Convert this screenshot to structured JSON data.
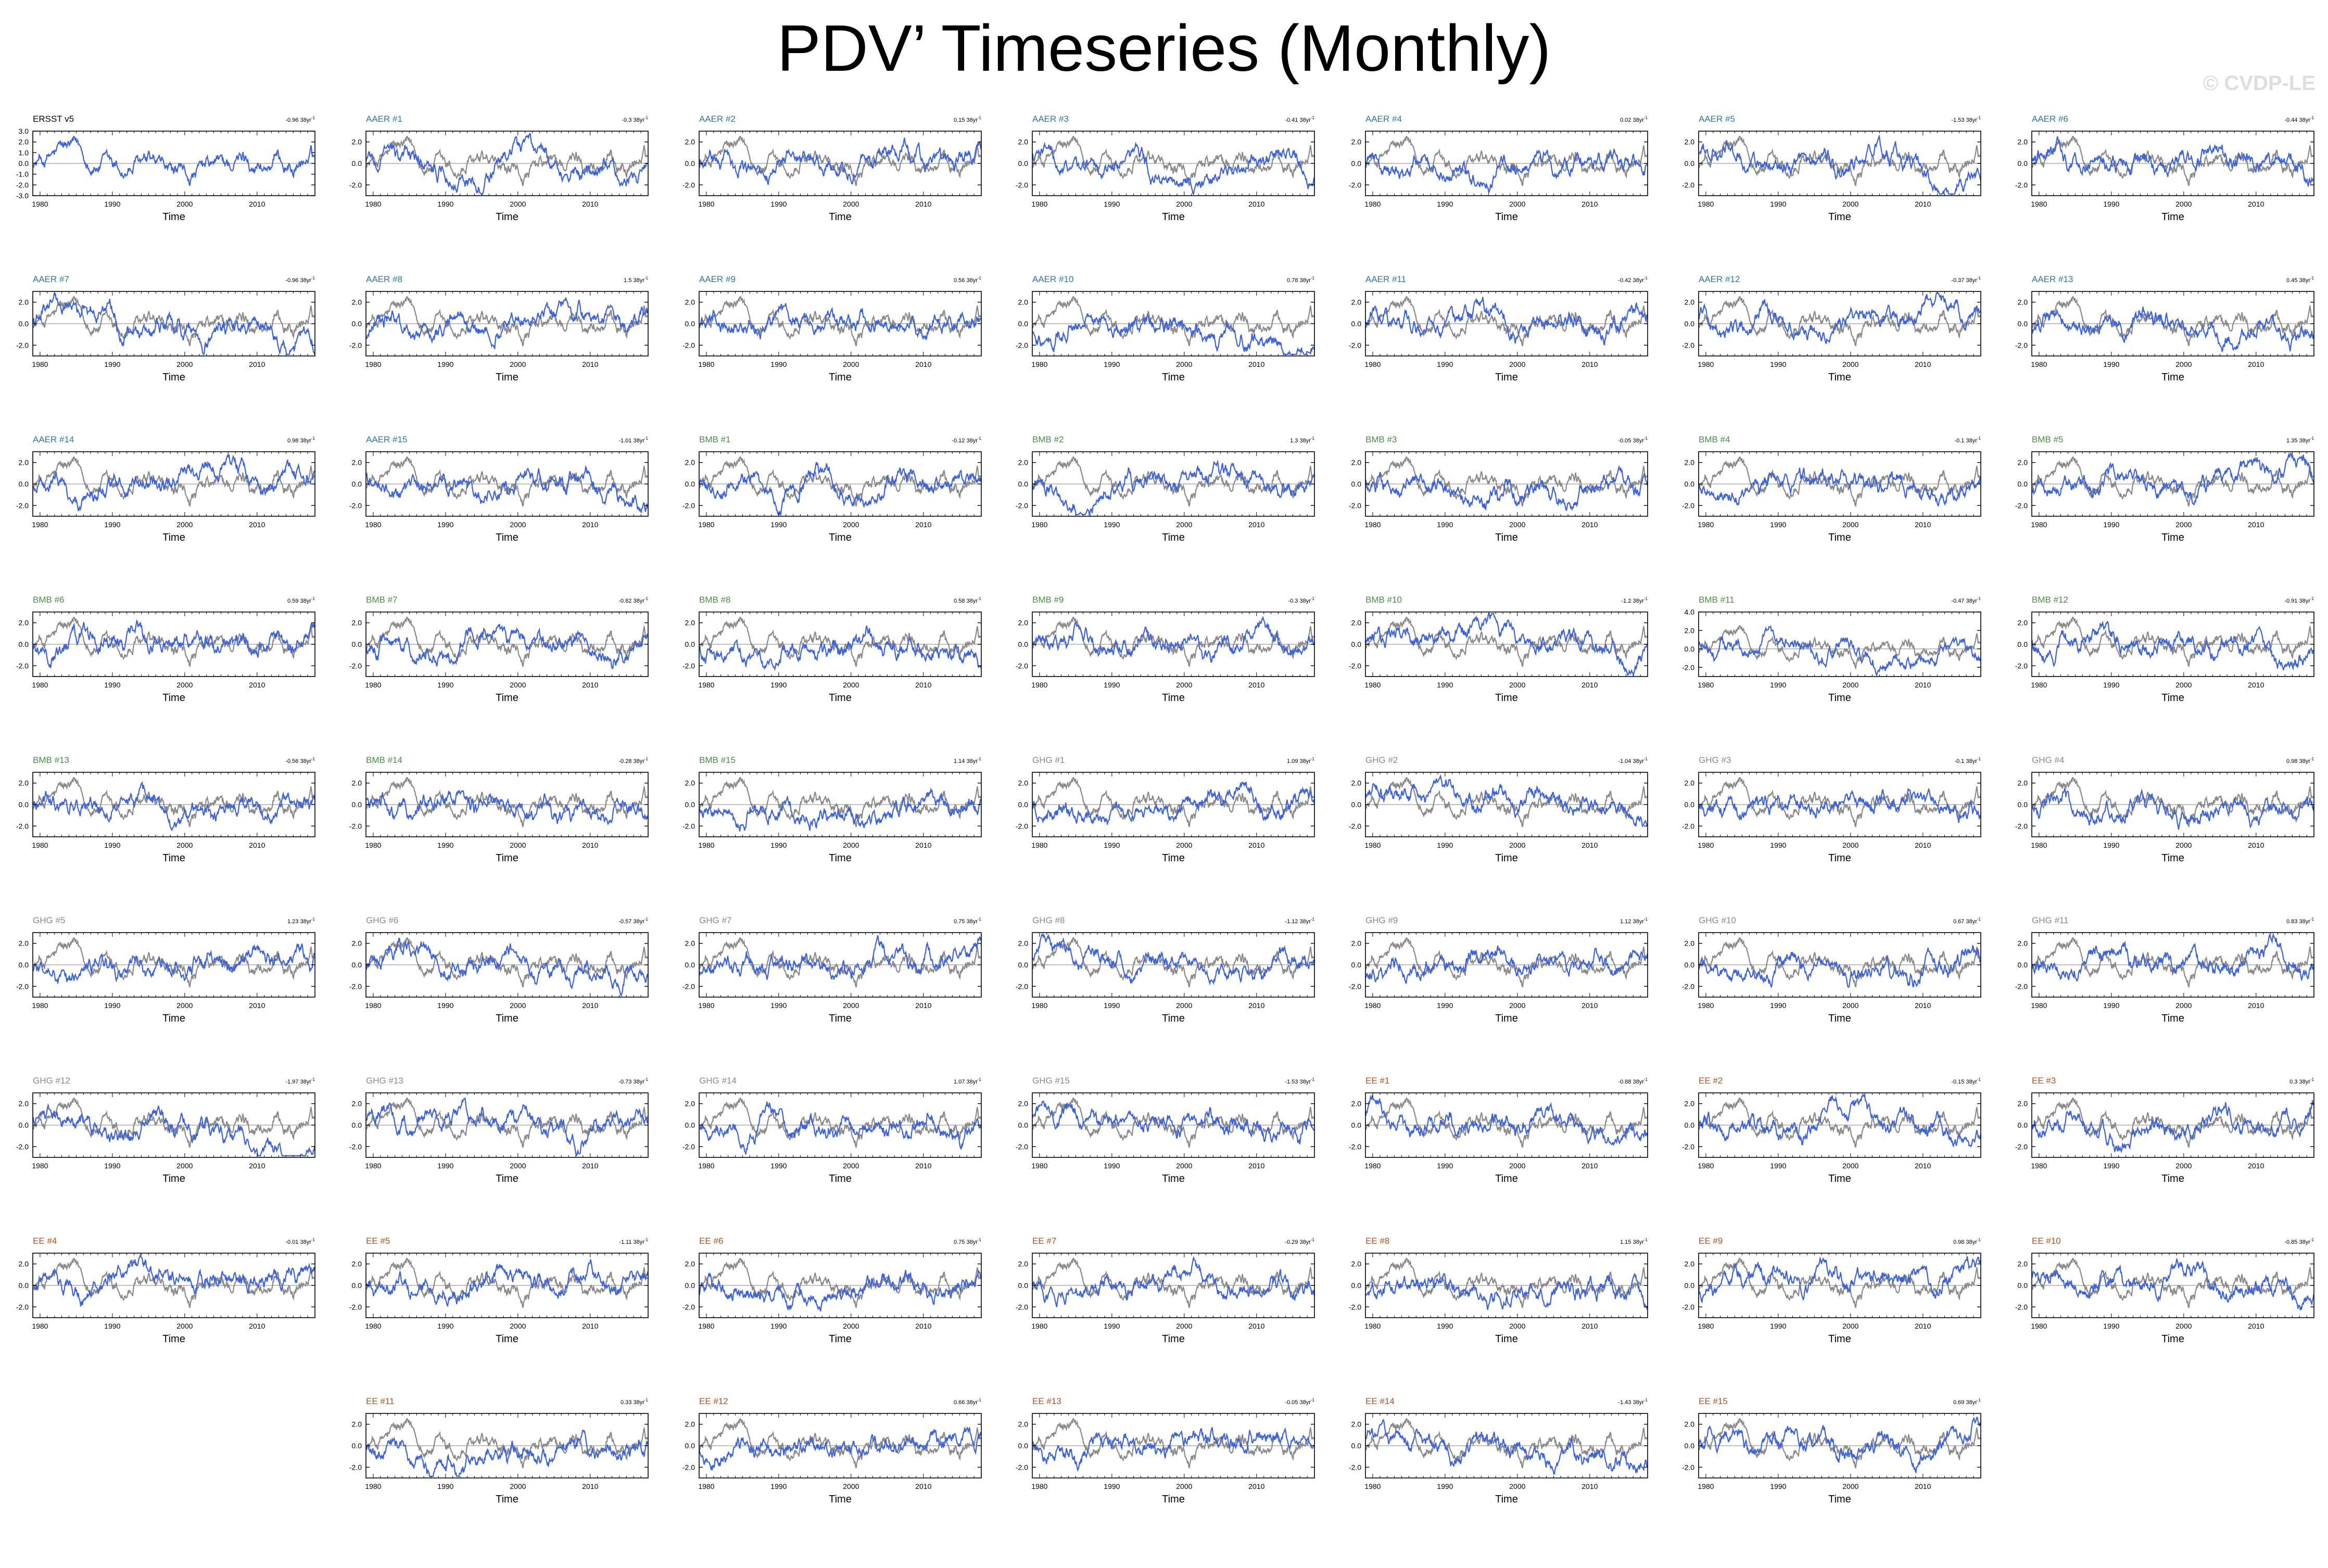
{
  "title": "PDV’ Timeseries (Monthly)",
  "copyright": "© CVDP-LE",
  "colors": {
    "obs_line": "#3b62e0",
    "ensemble_line": "#8a8a8a",
    "zero_line": "#9a9a9a",
    "axis": "#000000",
    "label_obs": "#000000",
    "label_AAER": "#2a7aa6",
    "label_BMB": "#4c8c4a",
    "label_GHG": "#8a8a8a",
    "label_EE": "#b5521d"
  },
  "chart_data": {
    "type": "line",
    "panel_count": 61,
    "x_label": "Time",
    "x_range": [
      1979,
      2018
    ],
    "x_ticks": [
      1980,
      1990,
      2000,
      2010
    ],
    "trend_unit": "38yr",
    "series_note": "Each simulation panel has two lines: the simulation in blue and the ERSST v5 observations in grey; the ERSST v5 panel has only the blue line. All values are monthly PDV’ anomalies.",
    "panels": [
      {
        "name": "ERSST v5",
        "group": "obs",
        "trend": "-0.96",
        "yticks": [
          "3.0",
          "2.0",
          "1.0",
          "0.0",
          "-1.0",
          "-2.0",
          "-3.0"
        ],
        "ylim": [
          -3,
          3
        ]
      },
      {
        "name": "AAER #1",
        "group": "AAER",
        "trend": "-0.3",
        "yticks": [
          "2.0",
          "0.0",
          "-2.0"
        ],
        "ylim": [
          -3,
          3
        ]
      },
      {
        "name": "AAER #2",
        "group": "AAER",
        "trend": "0.15",
        "yticks": [
          "2.0",
          "0.0",
          "-2.0"
        ],
        "ylim": [
          -3,
          3
        ]
      },
      {
        "name": "AAER #3",
        "group": "AAER",
        "trend": "-0.41",
        "yticks": [
          "2.0",
          "0.0",
          "-2.0"
        ],
        "ylim": [
          -3,
          3
        ]
      },
      {
        "name": "AAER #4",
        "group": "AAER",
        "trend": "0.02",
        "yticks": [
          "2.0",
          "0.0",
          "-2.0"
        ],
        "ylim": [
          -3,
          3
        ]
      },
      {
        "name": "AAER #5",
        "group": "AAER",
        "trend": "-1.53",
        "yticks": [
          "2.0",
          "0.0",
          "-2.0"
        ],
        "ylim": [
          -3,
          3
        ]
      },
      {
        "name": "AAER #6",
        "group": "AAER",
        "trend": "-0.44",
        "yticks": [
          "2.0",
          "0.0",
          "-2.0"
        ],
        "ylim": [
          -3,
          3
        ]
      },
      {
        "name": "AAER #7",
        "group": "AAER",
        "trend": "-0.96",
        "yticks": [
          "2.0",
          "0.0",
          "-2.0"
        ],
        "ylim": [
          -3,
          3
        ]
      },
      {
        "name": "AAER #8",
        "group": "AAER",
        "trend": "1.5",
        "yticks": [
          "2.0",
          "0.0",
          "-2.0"
        ],
        "ylim": [
          -3,
          3
        ]
      },
      {
        "name": "AAER #9",
        "group": "AAER",
        "trend": "0.56",
        "yticks": [
          "2.0",
          "0.0",
          "-2.0"
        ],
        "ylim": [
          -3,
          3
        ]
      },
      {
        "name": "AAER #10",
        "group": "AAER",
        "trend": "0.78",
        "yticks": [
          "2.0",
          "0.0",
          "-2.0"
        ],
        "ylim": [
          -3,
          3
        ]
      },
      {
        "name": "AAER #11",
        "group": "AAER",
        "trend": "-0.42",
        "yticks": [
          "2.0",
          "0.0",
          "-2.0"
        ],
        "ylim": [
          -3,
          3
        ]
      },
      {
        "name": "AAER #12",
        "group": "AAER",
        "trend": "-0.37",
        "yticks": [
          "2.0",
          "0.0",
          "-2.0"
        ],
        "ylim": [
          -3,
          3
        ]
      },
      {
        "name": "AAER #13",
        "group": "AAER",
        "trend": "0.45",
        "yticks": [
          "2.0",
          "0.0",
          "-2.0"
        ],
        "ylim": [
          -3,
          3
        ]
      },
      {
        "name": "AAER #14",
        "group": "AAER",
        "trend": "0.98",
        "yticks": [
          "2.0",
          "0.0",
          "-2.0"
        ],
        "ylim": [
          -3,
          3
        ]
      },
      {
        "name": "AAER #15",
        "group": "AAER",
        "trend": "-1.01",
        "yticks": [
          "2.0",
          "0.0",
          "-2.0"
        ],
        "ylim": [
          -3,
          3
        ]
      },
      {
        "name": "BMB #1",
        "group": "BMB",
        "trend": "-0.12",
        "yticks": [
          "2.0",
          "0.0",
          "-2.0"
        ],
        "ylim": [
          -3,
          3
        ]
      },
      {
        "name": "BMB #2",
        "group": "BMB",
        "trend": "1.3",
        "yticks": [
          "2.0",
          "0.0",
          "-2.0"
        ],
        "ylim": [
          -3,
          3
        ]
      },
      {
        "name": "BMB #3",
        "group": "BMB",
        "trend": "-0.05",
        "yticks": [
          "2.0",
          "0.0",
          "-2.0"
        ],
        "ylim": [
          -3,
          3
        ]
      },
      {
        "name": "BMB #4",
        "group": "BMB",
        "trend": "-0.1",
        "yticks": [
          "2.0",
          "0.0",
          "-2.0"
        ],
        "ylim": [
          -3,
          3
        ]
      },
      {
        "name": "BMB #5",
        "group": "BMB",
        "trend": "1.35",
        "yticks": [
          "2.0",
          "0.0",
          "-2.0"
        ],
        "ylim": [
          -3,
          3
        ]
      },
      {
        "name": "BMB #6",
        "group": "BMB",
        "trend": "0.59",
        "yticks": [
          "2.0",
          "0.0",
          "-2.0"
        ],
        "ylim": [
          -3,
          3
        ]
      },
      {
        "name": "BMB #7",
        "group": "BMB",
        "trend": "-0.82",
        "yticks": [
          "2.0",
          "0.0",
          "-2.0"
        ],
        "ylim": [
          -3,
          3
        ]
      },
      {
        "name": "BMB #8",
        "group": "BMB",
        "trend": "0.58",
        "yticks": [
          "2.0",
          "0.0",
          "-2.0"
        ],
        "ylim": [
          -3,
          3
        ]
      },
      {
        "name": "BMB #9",
        "group": "BMB",
        "trend": "-0.3",
        "yticks": [
          "2.0",
          "0.0",
          "-2.0"
        ],
        "ylim": [
          -3,
          3
        ]
      },
      {
        "name": "BMB #10",
        "group": "BMB",
        "trend": "-1.2",
        "yticks": [
          "2.0",
          "0.0",
          "-2.0"
        ],
        "ylim": [
          -3,
          3
        ]
      },
      {
        "name": "BMB #11",
        "group": "BMB",
        "trend": "-0.47",
        "yticks": [
          "4.0",
          "2.0",
          "0.0",
          "-2.0"
        ],
        "ylim": [
          -3,
          4
        ]
      },
      {
        "name": "BMB #12",
        "group": "BMB",
        "trend": "-0.91",
        "yticks": [
          "2.0",
          "0.0",
          "-2.0"
        ],
        "ylim": [
          -3,
          3
        ]
      },
      {
        "name": "BMB #13",
        "group": "BMB",
        "trend": "-0.56",
        "yticks": [
          "2.0",
          "0.0",
          "-2.0"
        ],
        "ylim": [
          -3,
          3
        ]
      },
      {
        "name": "BMB #14",
        "group": "BMB",
        "trend": "-0.28",
        "yticks": [
          "2.0",
          "0.0",
          "-2.0"
        ],
        "ylim": [
          -3,
          3
        ]
      },
      {
        "name": "BMB #15",
        "group": "BMB",
        "trend": "1.14",
        "yticks": [
          "2.0",
          "0.0",
          "-2.0"
        ],
        "ylim": [
          -3,
          3
        ]
      },
      {
        "name": "GHG #1",
        "group": "GHG",
        "trend": "1.09",
        "yticks": [
          "2.0",
          "0.0",
          "-2.0"
        ],
        "ylim": [
          -3,
          3
        ]
      },
      {
        "name": "GHG #2",
        "group": "GHG",
        "trend": "-1.04",
        "yticks": [
          "2.0",
          "0.0",
          "-2.0"
        ],
        "ylim": [
          -3,
          3
        ]
      },
      {
        "name": "GHG #3",
        "group": "GHG",
        "trend": "-0.1",
        "yticks": [
          "2.0",
          "0.0",
          "-2.0"
        ],
        "ylim": [
          -3,
          3
        ]
      },
      {
        "name": "GHG #4",
        "group": "GHG",
        "trend": "0.98",
        "yticks": [
          "2.0",
          "0.0",
          "-2.0"
        ],
        "ylim": [
          -3,
          3
        ]
      },
      {
        "name": "GHG #5",
        "group": "GHG",
        "trend": "1.23",
        "yticks": [
          "2.0",
          "0.0",
          "-2.0"
        ],
        "ylim": [
          -3,
          3
        ]
      },
      {
        "name": "GHG #6",
        "group": "GHG",
        "trend": "-0.57",
        "yticks": [
          "2.0",
          "0.0",
          "-2.0"
        ],
        "ylim": [
          -3,
          3
        ]
      },
      {
        "name": "GHG #7",
        "group": "GHG",
        "trend": "0.75",
        "yticks": [
          "2.0",
          "0.0",
          "-2.0"
        ],
        "ylim": [
          -3,
          3
        ]
      },
      {
        "name": "GHG #8",
        "group": "GHG",
        "trend": "-1.12",
        "yticks": [
          "2.0",
          "0.0",
          "-2.0"
        ],
        "ylim": [
          -3,
          3
        ]
      },
      {
        "name": "GHG #9",
        "group": "GHG",
        "trend": "1.12",
        "yticks": [
          "2.0",
          "0.0",
          "-2.0"
        ],
        "ylim": [
          -3,
          3
        ]
      },
      {
        "name": "GHG #10",
        "group": "GHG",
        "trend": "0.67",
        "yticks": [
          "2.0",
          "0.0",
          "-2.0"
        ],
        "ylim": [
          -3,
          3
        ]
      },
      {
        "name": "GHG #11",
        "group": "GHG",
        "trend": "0.83",
        "yticks": [
          "2.0",
          "0.0",
          "-2.0"
        ],
        "ylim": [
          -3,
          3
        ]
      },
      {
        "name": "GHG #12",
        "group": "GHG",
        "trend": "-1.97",
        "yticks": [
          "2.0",
          "0.0",
          "-2.0"
        ],
        "ylim": [
          -3,
          3
        ]
      },
      {
        "name": "GHG #13",
        "group": "GHG",
        "trend": "-0.73",
        "yticks": [
          "2.0",
          "0.0",
          "-2.0"
        ],
        "ylim": [
          -3,
          3
        ]
      },
      {
        "name": "GHG #14",
        "group": "GHG",
        "trend": "1.07",
        "yticks": [
          "2.0",
          "0.0",
          "-2.0"
        ],
        "ylim": [
          -3,
          3
        ]
      },
      {
        "name": "GHG #15",
        "group": "GHG",
        "trend": "-1.53",
        "yticks": [
          "2.0",
          "0.0",
          "-2.0"
        ],
        "ylim": [
          -3,
          3
        ]
      },
      {
        "name": "EE #1",
        "group": "EE",
        "trend": "-0.88",
        "yticks": [
          "2.0",
          "0.0",
          "-2.0"
        ],
        "ylim": [
          -3,
          3
        ]
      },
      {
        "name": "EE #2",
        "group": "EE",
        "trend": "-0.15",
        "yticks": [
          "2.0",
          "0.0",
          "-2.0"
        ],
        "ylim": [
          -3,
          3
        ]
      },
      {
        "name": "EE #3",
        "group": "EE",
        "trend": "0.3",
        "yticks": [
          "2.0",
          "0.0",
          "-2.0"
        ],
        "ylim": [
          -3,
          3
        ]
      },
      {
        "name": "EE #4",
        "group": "EE",
        "trend": "-0.01",
        "yticks": [
          "2.0",
          "0.0",
          "-2.0"
        ],
        "ylim": [
          -3,
          3
        ]
      },
      {
        "name": "EE #5",
        "group": "EE",
        "trend": "-1.11",
        "yticks": [
          "2.0",
          "0.0",
          "-2.0"
        ],
        "ylim": [
          -3,
          3
        ]
      },
      {
        "name": "EE #6",
        "group": "EE",
        "trend": "0.75",
        "yticks": [
          "2.0",
          "0.0",
          "-2.0"
        ],
        "ylim": [
          -3,
          3
        ]
      },
      {
        "name": "EE #7",
        "group": "EE",
        "trend": "-0.29",
        "yticks": [
          "2.0",
          "0.0",
          "-2.0"
        ],
        "ylim": [
          -3,
          3
        ]
      },
      {
        "name": "EE #8",
        "group": "EE",
        "trend": "1.15",
        "yticks": [
          "2.0",
          "0.0",
          "-2.0"
        ],
        "ylim": [
          -3,
          3
        ]
      },
      {
        "name": "EE #9",
        "group": "EE",
        "trend": "0.98",
        "yticks": [
          "2.0",
          "0.0",
          "-2.0"
        ],
        "ylim": [
          -3,
          3
        ]
      },
      {
        "name": "EE #10",
        "group": "EE",
        "trend": "-0.85",
        "yticks": [
          "2.0",
          "0.0",
          "-2.0"
        ],
        "ylim": [
          -3,
          3
        ]
      },
      {
        "name": "EE #11",
        "group": "EE",
        "trend": "0.33",
        "yticks": [
          "2.0",
          "0.0",
          "-2.0"
        ],
        "ylim": [
          -3,
          3
        ]
      },
      {
        "name": "EE #12",
        "group": "EE",
        "trend": "0.66",
        "yticks": [
          "2.0",
          "0.0",
          "-2.0"
        ],
        "ylim": [
          -3,
          3
        ]
      },
      {
        "name": "EE #13",
        "group": "EE",
        "trend": "-0.05",
        "yticks": [
          "2.0",
          "0.0",
          "-2.0"
        ],
        "ylim": [
          -3,
          3
        ]
      },
      {
        "name": "EE #14",
        "group": "EE",
        "trend": "-1.43",
        "yticks": [
          "2.0",
          "0.0",
          "-2.0"
        ],
        "ylim": [
          -3,
          3
        ]
      },
      {
        "name": "EE #15",
        "group": "EE",
        "trend": "0.69",
        "yticks": [
          "2.0",
          "0.0",
          "-2.0"
        ],
        "ylim": [
          -3,
          3
        ]
      }
    ]
  }
}
